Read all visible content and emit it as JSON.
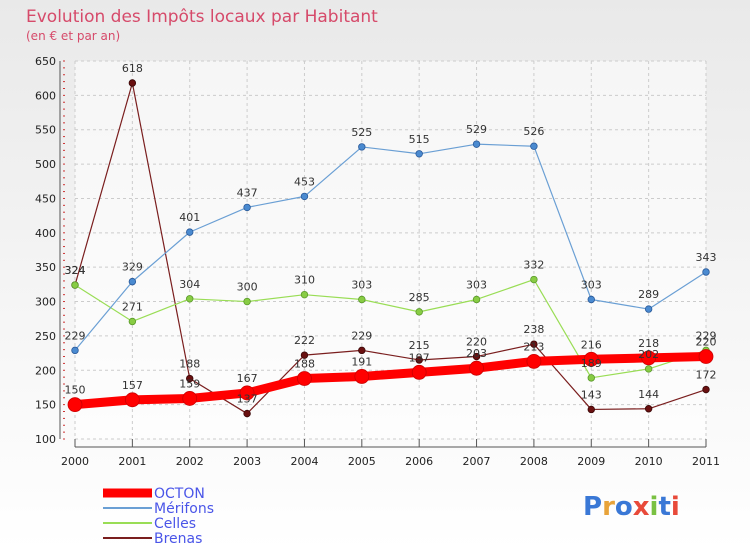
{
  "chart_data": {
    "type": "line",
    "title": "Evolution des Impôts locaux par Habitant",
    "subtitle": "(en € et par an)",
    "xlabel": "",
    "ylabel": "",
    "ylim": [
      100,
      650
    ],
    "yticks": [
      100,
      150,
      200,
      250,
      300,
      350,
      400,
      450,
      500,
      550,
      600,
      650
    ],
    "x": [
      "2000",
      "2001",
      "2002",
      "2003",
      "2004",
      "2005",
      "2006",
      "2007",
      "2008",
      "2009",
      "2010",
      "2011"
    ],
    "series": [
      {
        "name": "OCTON",
        "color": "#ff0000",
        "values": [
          150,
          157,
          159,
          167,
          188,
          191,
          197,
          203,
          213,
          216,
          218,
          220
        ]
      },
      {
        "name": "Mérifons",
        "color": "#6a9fd4",
        "values": [
          229,
          329,
          401,
          437,
          453,
          525,
          515,
          529,
          526,
          303,
          289,
          343
        ]
      },
      {
        "name": "Celles",
        "color": "#99dd55",
        "values": [
          324,
          271,
          304,
          300,
          310,
          303,
          285,
          303,
          332,
          189,
          202,
          229
        ]
      },
      {
        "name": "Brenas",
        "color": "#7a1e1e",
        "values": [
          324,
          618,
          188,
          137,
          222,
          229,
          215,
          220,
          238,
          143,
          144,
          172
        ]
      }
    ],
    "grid": true,
    "legend_position": "bottom-left"
  },
  "logo": {
    "text": "Proxiti",
    "colors": [
      "#3a78d6",
      "#e8a33a",
      "#3a78d6",
      "#e84a3a",
      "#7ac143",
      "#3a78d6",
      "#e84a3a"
    ]
  }
}
